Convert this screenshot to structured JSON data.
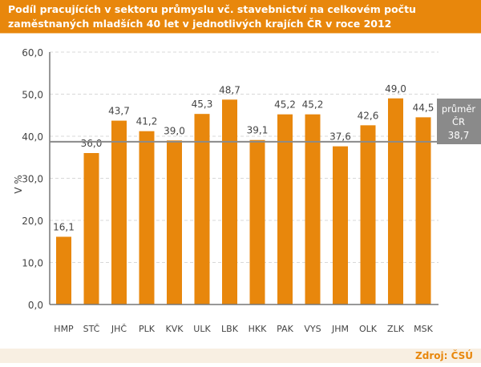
{
  "chart_data": {
    "type": "bar",
    "title": "Podíl pracujících v sektoru průmyslu vč. stavebnictví na celkovém počtu zaměstnaných mladších 40 let v jednotlivých krajích ČR v roce 2012",
    "ylabel": "V %",
    "xlabel": "",
    "ylim": [
      0,
      60
    ],
    "yticks": [
      "0,0",
      "10,0",
      "20,0",
      "30,0",
      "40,0",
      "50,0",
      "60,0"
    ],
    "grid": true,
    "categories": [
      "HMP",
      "STČ",
      "JHČ",
      "PLK",
      "KVK",
      "ULK",
      "LBK",
      "HKK",
      "PAK",
      "VYS",
      "JHM",
      "OLK",
      "ZLK",
      "MSK"
    ],
    "values": [
      16.1,
      36.0,
      43.7,
      41.2,
      39.0,
      45.3,
      48.7,
      39.1,
      45.2,
      45.2,
      37.6,
      42.6,
      49.0,
      44.5
    ],
    "value_labels": [
      "16,1",
      "36,0",
      "43,7",
      "41,2",
      "39,0",
      "45,3",
      "48,7",
      "39,1",
      "45,2",
      "45,2",
      "37,6",
      "42,6",
      "49,0",
      "44,5"
    ],
    "average": {
      "value": 38.7,
      "label_line1": "průměr",
      "label_line2": "ČR",
      "value_label": "38,7"
    },
    "colors": {
      "bar": "#e8870c",
      "average": "#8a8a8a"
    }
  },
  "source": "Zdroj: ČSÚ"
}
